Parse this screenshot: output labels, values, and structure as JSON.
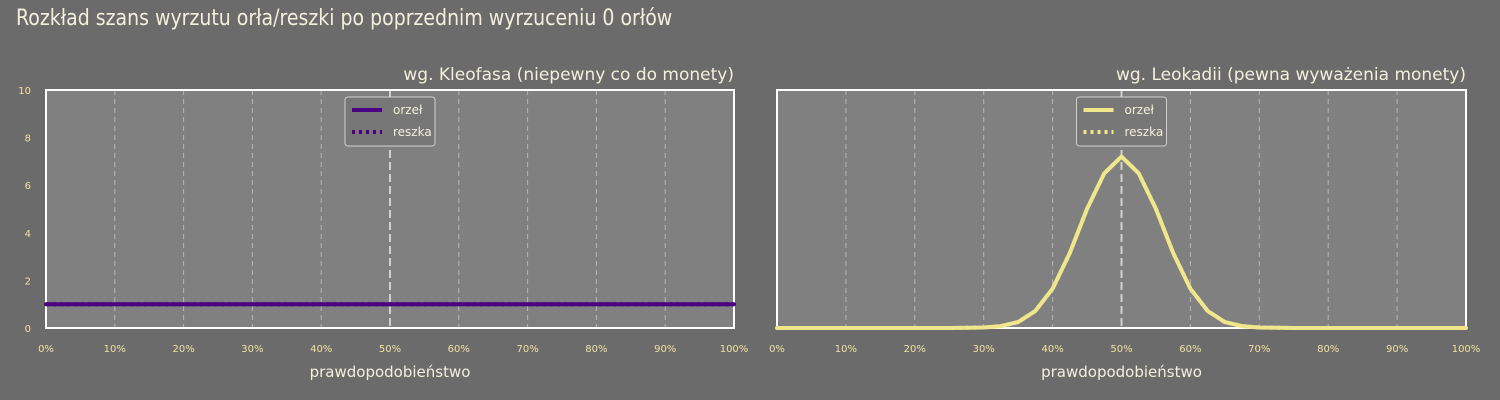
{
  "title": "Rozkład szans wyrzutu orła/reszki po poprzednim wyrzuceniu 0 orłów",
  "colors": {
    "background": "#6b6b6b",
    "plot_area": "#808080",
    "series_left": "#4b0082",
    "series_right": "#f0e68c",
    "grid": "#b5b5b5",
    "midline": "#d0d0d0",
    "text": "#f2efdc",
    "tick_text": "#f0e0a0"
  },
  "chart_data": [
    {
      "type": "line",
      "title": "wg. Kleofasa (niepewny co do monety)",
      "xlabel": "prawdopodobieństwo",
      "ylabel": "",
      "xlim": [
        0,
        1
      ],
      "ylim": [
        0,
        10
      ],
      "xticks": [
        "0%",
        "10%",
        "20%",
        "30%",
        "40%",
        "50%",
        "60%",
        "70%",
        "80%",
        "90%",
        "100%"
      ],
      "yticks": [
        "0",
        "2",
        "4",
        "6",
        "8",
        "10"
      ],
      "grid": "vertical dashed",
      "legend_position": "top-center",
      "x": [
        0,
        0.1,
        0.2,
        0.3,
        0.4,
        0.5,
        0.6,
        0.7,
        0.8,
        0.9,
        1.0
      ],
      "series": [
        {
          "name": "orzeł",
          "style": "solid",
          "values": [
            1,
            1,
            1,
            1,
            1,
            1,
            1,
            1,
            1,
            1,
            1
          ]
        },
        {
          "name": "reszka",
          "style": "dotted",
          "values": [
            1,
            1,
            1,
            1,
            1,
            1,
            1,
            1,
            1,
            1,
            1
          ]
        }
      ]
    },
    {
      "type": "line",
      "title": "wg. Leokadii (pewna wyważenia monety)",
      "xlabel": "prawdopodobieństwo",
      "ylabel": "",
      "xlim": [
        0,
        1
      ],
      "ylim": [
        0,
        10
      ],
      "xticks": [
        "0%",
        "10%",
        "20%",
        "30%",
        "40%",
        "50%",
        "60%",
        "70%",
        "80%",
        "90%",
        "100%"
      ],
      "yticks": [],
      "grid": "vertical dashed",
      "legend_position": "top-center",
      "x": [
        0,
        0.05,
        0.1,
        0.15,
        0.2,
        0.25,
        0.3,
        0.325,
        0.35,
        0.375,
        0.4,
        0.425,
        0.45,
        0.475,
        0.5,
        0.525,
        0.55,
        0.575,
        0.6,
        0.625,
        0.65,
        0.675,
        0.7,
        0.75,
        0.8,
        0.85,
        0.9,
        0.95,
        1.0
      ],
      "series": [
        {
          "name": "orzeł",
          "style": "solid",
          "values": [
            0,
            0,
            0,
            0,
            0,
            0,
            0.02,
            0.08,
            0.25,
            0.72,
            1.65,
            3.15,
            5.0,
            6.5,
            7.2,
            6.5,
            5.0,
            3.15,
            1.65,
            0.72,
            0.25,
            0.08,
            0.02,
            0,
            0,
            0,
            0,
            0,
            0
          ]
        },
        {
          "name": "reszka",
          "style": "dotted",
          "values": [
            0,
            0,
            0,
            0,
            0,
            0,
            0.02,
            0.08,
            0.25,
            0.72,
            1.65,
            3.15,
            5.0,
            6.5,
            7.2,
            6.5,
            5.0,
            3.15,
            1.65,
            0.72,
            0.25,
            0.08,
            0.02,
            0,
            0,
            0,
            0,
            0,
            0
          ]
        }
      ]
    }
  ]
}
